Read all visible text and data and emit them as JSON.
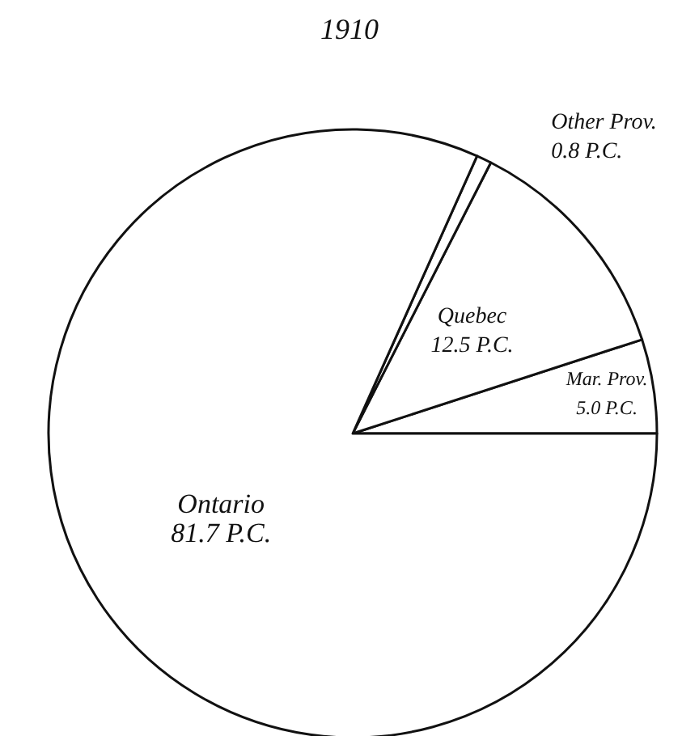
{
  "chart_data": {
    "type": "pie",
    "title": "1910",
    "categories": [
      "Mar. Prov.",
      "Quebec",
      "Other Prov.",
      "Ontario"
    ],
    "values": [
      5.0,
      12.5,
      0.8,
      81.7
    ],
    "value_labels": [
      "5.0 P.C.",
      "12.5 P.C.",
      "0.8 P.C.",
      "81.7 P.C."
    ],
    "colors": [
      "#ffffff",
      "#ffffff",
      "#ffffff",
      "#ffffff"
    ],
    "legend": false
  }
}
